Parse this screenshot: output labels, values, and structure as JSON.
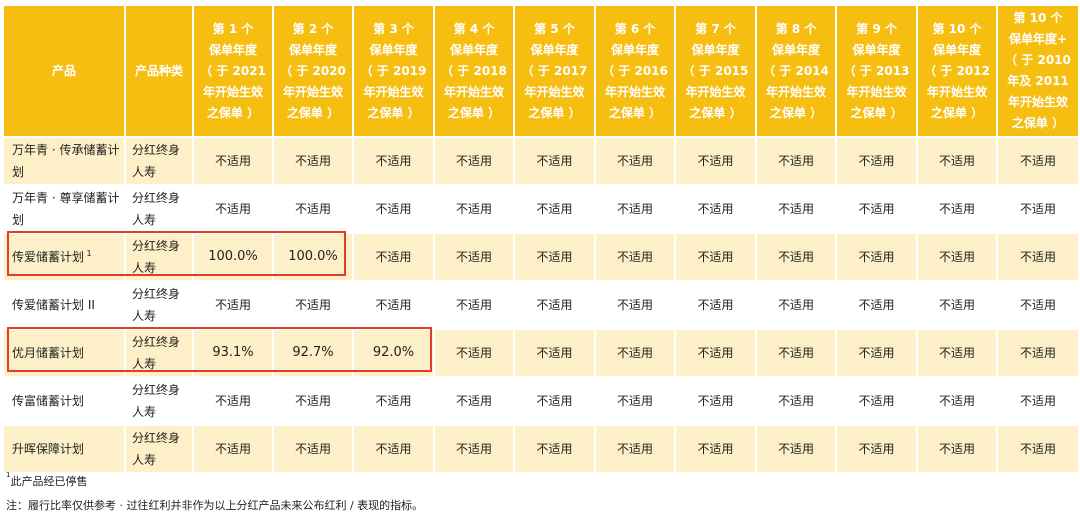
{
  "table": {
    "headers": [
      "产品",
      "产品种类",
      "第 1 个\n保单年度\n（ 于 2021\n年开始生效\n之保单 ）",
      "第 2 个\n保单年度\n（ 于 2020\n年开始生效\n之保单 ）",
      "第 3 个\n保单年度\n（ 于 2019\n年开始生效\n之保单 ）",
      "第 4 个\n保单年度\n（ 于 2018\n年开始生效\n之保单 ）",
      "第 5 个\n保单年度\n（ 于 2017\n年开始生效\n之保单 ）",
      "第 6 个\n保单年度\n（ 于 2016\n年开始生效\n之保单 ）",
      "第 7 个\n保单年度\n（ 于 2015\n年开始生效\n之保单 ）",
      "第 8 个\n保单年度\n（ 于 2014\n年开始生效\n之保单 ）",
      "第 9 个\n保单年度\n（ 于 2013\n年开始生效\n之保单 ）",
      "第 10 个\n保单年度\n（ 于 2012\n年开始生效\n之保单 ）",
      "第 10 个\n保单年度+\n（ 于 2010\n年及 2011\n年开始生效\n之保单 ）"
    ],
    "rows": [
      {
        "product": "万年青 · 传承储蓄计\n划",
        "sup": "",
        "type": "分红终身\n人寿",
        "values": [
          "不适用",
          "不适用",
          "不适用",
          "不适用",
          "不适用",
          "不适用",
          "不适用",
          "不适用",
          "不适用",
          "不适用",
          "不适用"
        ]
      },
      {
        "product": "万年青 · 尊享储蓄计\n划",
        "sup": "",
        "type": "分红终身\n人寿",
        "values": [
          "不适用",
          "不适用",
          "不适用",
          "不适用",
          "不适用",
          "不适用",
          "不适用",
          "不适用",
          "不适用",
          "不适用",
          "不适用"
        ]
      },
      {
        "product": "传爱储蓄计划",
        "sup": "1",
        "type": "分红终身\n人寿",
        "values": [
          "100.0%",
          "100.0%",
          "不适用",
          "不适用",
          "不适用",
          "不适用",
          "不适用",
          "不适用",
          "不适用",
          "不适用",
          "不适用"
        ]
      },
      {
        "product": "传爱储蓄计划 II",
        "sup": "",
        "type": "分红终身\n人寿",
        "values": [
          "不适用",
          "不适用",
          "不适用",
          "不适用",
          "不适用",
          "不适用",
          "不适用",
          "不适用",
          "不适用",
          "不适用",
          "不适用"
        ]
      },
      {
        "product": "优月储蓄计划",
        "sup": "",
        "type": "分红终身\n人寿",
        "values": [
          "93.1%",
          "92.7%",
          "92.0%",
          "不适用",
          "不适用",
          "不适用",
          "不适用",
          "不适用",
          "不适用",
          "不适用",
          "不适用"
        ]
      },
      {
        "product": "传富储蓄计划",
        "sup": "",
        "type": "分红终身\n人寿",
        "values": [
          "不适用",
          "不适用",
          "不适用",
          "不适用",
          "不适用",
          "不适用",
          "不适用",
          "不适用",
          "不适用",
          "不适用",
          "不适用"
        ]
      },
      {
        "product": "升晖保障计划",
        "sup": "",
        "type": "分红终身\n人寿",
        "values": [
          "不适用",
          "不适用",
          "不适用",
          "不适用",
          "不适用",
          "不适用",
          "不适用",
          "不适用",
          "不适用",
          "不适用",
          "不适用"
        ]
      }
    ]
  },
  "footnotes": {
    "note1_sup": "1",
    "note1": "此产品经已停售",
    "note2": "注：履行比率仅供参考 · 过往红利并非作为以上分红产品未来公布红利 / 表现的指标。"
  },
  "colors": {
    "header_bg": "#f7be12",
    "row_odd_bg": "#fdf0c8",
    "highlight_border": "#e23c2f"
  }
}
